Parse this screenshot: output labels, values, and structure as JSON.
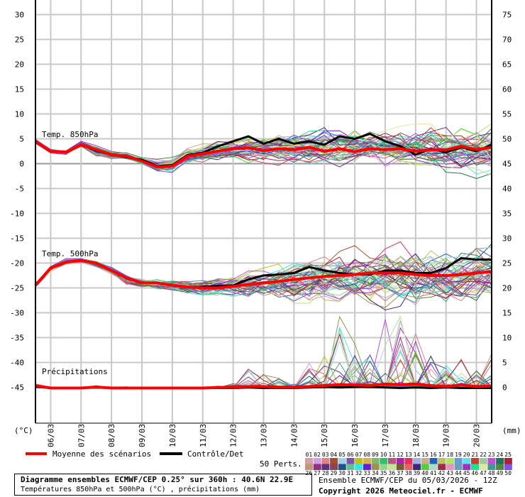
{
  "chart_data": {
    "type": "line",
    "title": "Diagramme ensembles ECMWF/CEP 0.25° sur 360h : 40.6N 22.9E",
    "subtitle": "Températures 850hPa et 500hPa (°C) , précipitations (mm)",
    "run_info": "Ensemble ECMWF/CEP du 05/03/2026 - 12Z",
    "copyright": "Copyright 2026 Meteociel.fr - ECMWF",
    "left_axis": {
      "label": "(°C)",
      "ticks": [
        30,
        25,
        20,
        15,
        10,
        5,
        0,
        -5,
        -10,
        -15,
        -20,
        -25,
        -30,
        -35,
        -40,
        -45
      ],
      "range": [
        -52,
        33
      ]
    },
    "right_axis": {
      "label": "(mm)",
      "ticks": [
        75,
        70,
        65,
        60,
        55,
        50,
        45,
        40,
        35,
        30,
        25,
        20,
        15,
        10,
        5,
        0
      ]
    },
    "x_tick_labels": [
      "06/03",
      "07/03",
      "08/03",
      "09/03",
      "10/03",
      "11/03",
      "12/03",
      "13/03",
      "14/03",
      "15/03",
      "16/03",
      "17/03",
      "18/03",
      "19/03",
      "20/03"
    ],
    "x_hours_step": 12,
    "x_range_hours": [
      0,
      360
    ],
    "grid": true,
    "panel_labels": {
      "t850": "Temp. 850hPa",
      "t500": "Temp. 500hPa",
      "precip": "Précipitations"
    },
    "legend": {
      "mean": {
        "label": "Moyenne des scénarios",
        "color": "#ff0000"
      },
      "control": {
        "label": "Contrôle/Det",
        "color": "#000000"
      },
      "perts_label": "50 Perts.",
      "members_top": [
        "01",
        "02",
        "03",
        "04",
        "05",
        "06",
        "07",
        "08",
        "09",
        "10",
        "11",
        "12",
        "13",
        "14",
        "15",
        "16",
        "17",
        "18",
        "19",
        "20",
        "21",
        "22",
        "23",
        "24",
        "25"
      ],
      "members_bottom": [
        "26",
        "27",
        "28",
        "29",
        "30",
        "31",
        "32",
        "33",
        "34",
        "35",
        "36",
        "37",
        "38",
        "39",
        "40",
        "41",
        "42",
        "43",
        "44",
        "45",
        "46",
        "47",
        "48",
        "49",
        "50"
      ],
      "colors_top": [
        "#d4a0a8",
        "#d0a0e0",
        "#e08088",
        "#a05030",
        "#a0d0e8",
        "#8050b0",
        "#c0c020",
        "#d8b050",
        "#80b870",
        "#30c070",
        "#c05080",
        "#b020b0",
        "#e03060",
        "#a0b0e0",
        "#c8b080",
        "#2060c0",
        "#c0c060",
        "#b0e860",
        "#60a0d8",
        "#60e0f0",
        "#c04030",
        "#a0c8a0",
        "#c050d8",
        "#207060",
        "#b02030"
      ],
      "colors_bottom": [
        "#c09878",
        "#903080",
        "#603080",
        "#904050",
        "#205090",
        "#60c090",
        "#30e8e8",
        "#6020d8",
        "#a09050",
        "#90d890",
        "#c0e890",
        "#706030",
        "#e86060",
        "#402878",
        "#50d040",
        "#b0d8c8",
        "#a02848",
        "#e890c8",
        "#70a0b8",
        "#a030c0",
        "#20e090",
        "#e0e8a0",
        "#409898",
        "#508840",
        "#8050e8"
      ]
    },
    "hours": [
      0,
      12,
      24,
      36,
      48,
      60,
      72,
      84,
      96,
      108,
      120,
      132,
      144,
      156,
      168,
      180,
      192,
      204,
      216,
      228,
      240,
      252,
      264,
      276,
      288,
      300,
      312,
      324,
      336,
      348,
      360
    ],
    "t850": {
      "mean": [
        4.5,
        2.5,
        2.3,
        3.8,
        2.8,
        1.8,
        1.5,
        0.5,
        -0.7,
        -0.5,
        1.5,
        2.0,
        2.5,
        3.0,
        3.2,
        2.6,
        3.0,
        2.8,
        3.3,
        2.5,
        3.0,
        2.4,
        3.0,
        2.8,
        3.0,
        2.5,
        2.8,
        2.8,
        3.5,
        2.8,
        3.3
      ],
      "control": [
        4.5,
        2.5,
        2.3,
        3.8,
        2.6,
        1.8,
        1.3,
        0.8,
        -0.5,
        -0.3,
        1.7,
        2.2,
        3.5,
        4.5,
        5.5,
        4.0,
        5.0,
        4.0,
        4.5,
        3.8,
        5.5,
        5.0,
        6.0,
        4.5,
        3.5,
        1.8,
        3.0,
        2.3,
        3.3,
        2.5,
        3.8
      ],
      "min": [
        4,
        2,
        1.8,
        3.3,
        1.5,
        1,
        0.8,
        -0.3,
        -2,
        -2,
        0,
        0,
        0.5,
        0.5,
        0,
        0,
        -0.3,
        -0.5,
        -0.5,
        -1,
        -1,
        -1,
        -1,
        -1.5,
        -2,
        -2,
        -2.5,
        -3,
        -3,
        -3.5,
        -3.5
      ],
      "max": [
        5,
        3,
        2.8,
        4.5,
        3.8,
        2.5,
        2.5,
        1.3,
        1,
        1.5,
        3.5,
        4,
        5,
        5.5,
        6,
        6,
        6.5,
        6.5,
        7,
        7.5,
        7.5,
        8,
        8,
        8.5,
        8.5,
        8,
        8,
        7.5,
        8,
        8.5,
        8.5
      ]
    },
    "t500": {
      "mean": [
        -24.5,
        -21,
        -19.8,
        -19.5,
        -20,
        -21.5,
        -23,
        -24,
        -24,
        -24.5,
        -24.8,
        -25,
        -25,
        -24.7,
        -24.3,
        -24,
        -23.7,
        -23.3,
        -23,
        -22.7,
        -22.5,
        -22.3,
        -22,
        -22,
        -22,
        -22.3,
        -22.5,
        -22.5,
        -22.3,
        -22,
        -21.7
      ],
      "control": [
        -24.5,
        -21,
        -19.8,
        -19.5,
        -20,
        -21.5,
        -23,
        -24,
        -24,
        -24.5,
        -24.8,
        -24.8,
        -24.6,
        -24.5,
        -23.3,
        -22.5,
        -22.3,
        -22,
        -20.8,
        -21.5,
        -22,
        -22.3,
        -22.3,
        -21.5,
        -21.5,
        -22,
        -22,
        -21,
        -19,
        -19.3,
        -19.3
      ],
      "min": [
        -25,
        -22,
        -20.5,
        -20,
        -21,
        -22.5,
        -24.5,
        -25,
        -25.5,
        -26,
        -26.5,
        -27,
        -27,
        -27,
        -27.5,
        -28,
        -28,
        -28.5,
        -28.5,
        -29,
        -29,
        -29,
        -29.5,
        -29.5,
        -29.5,
        -29.5,
        -29.5,
        -29.5,
        -29,
        -29,
        -28
      ],
      "max": [
        -24,
        -20.5,
        -19,
        -19,
        -19.5,
        -20.5,
        -22,
        -23,
        -23,
        -23,
        -23,
        -23,
        -22.5,
        -22,
        -21.5,
        -21,
        -20,
        -19,
        -18,
        -17.5,
        -17,
        -16.5,
        -16,
        -15.5,
        -15.5,
        -16,
        -16,
        -16,
        -16.5,
        -16,
        -16
      ]
    },
    "precip_mm": {
      "mean": [
        0.5,
        0,
        0,
        0,
        0.2,
        0,
        0,
        0,
        0,
        0,
        0,
        0,
        0.1,
        0.2,
        0.3,
        0.3,
        0.2,
        0.2,
        0.3,
        0.5,
        0.7,
        0.6,
        0.5,
        0.8,
        0.7,
        0.8,
        0.5,
        0.3,
        0.6,
        0.3,
        0.4
      ],
      "control": [
        0.3,
        0,
        0,
        0,
        0.1,
        0,
        0,
        0,
        0,
        0,
        0,
        0,
        0,
        0,
        0.1,
        0,
        0,
        0,
        0.1,
        0.2,
        0.1,
        0.2,
        0.2,
        0.1,
        0,
        0.1,
        0,
        0.1,
        0,
        0,
        0
      ],
      "max": [
        1,
        0.3,
        0.2,
        0.2,
        0.5,
        0.3,
        0.3,
        0.2,
        0.2,
        0.1,
        0.1,
        0.2,
        0.5,
        1,
        5,
        3,
        2,
        1,
        5,
        7,
        15,
        10,
        8,
        15,
        15,
        14,
        8,
        5,
        6,
        4,
        8
      ]
    }
  }
}
